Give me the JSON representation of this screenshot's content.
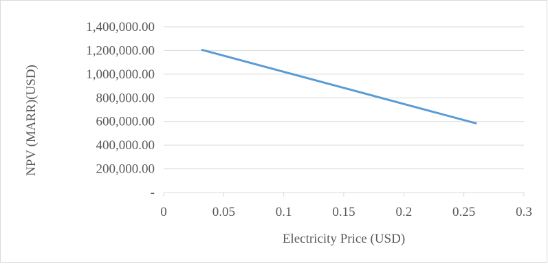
{
  "chart_data": {
    "type": "line",
    "xlabel": "Electricity Price (USD)",
    "ylabel": "NPV (MARR)(USD)",
    "xlim": [
      0,
      0.3
    ],
    "ylim": [
      0,
      1400000
    ],
    "x_ticks": [
      "0",
      "0.05",
      "0.1",
      "0.15",
      "0.2",
      "0.25",
      "0.3"
    ],
    "y_ticks": [
      "-",
      "200,000.00",
      "400,000.00",
      "600,000.00",
      "800,000.00",
      "1,000,000.00",
      "1,200,000.00",
      "1,400,000.00"
    ],
    "grid": true,
    "legend": "none",
    "series": [
      {
        "color": "#5b9bd5",
        "x": [
          0.032,
          0.26
        ],
        "y": [
          1205000,
          585000
        ]
      }
    ]
  }
}
